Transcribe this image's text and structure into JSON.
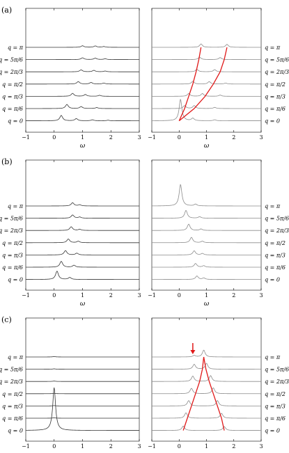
{
  "figure": {
    "panel_labels": [
      "(a)",
      "(b)",
      "(c)"
    ],
    "q_labels": [
      "q = π",
      "q = 5π/6",
      "q = 2π/3",
      "q = π/2",
      "q = π/3",
      "q = π/6",
      "q = 0"
    ],
    "x_tick_labels": [
      "−1",
      "0",
      "1",
      "2",
      "3"
    ],
    "xlabel": "ω",
    "colors": {
      "left_curves": "#333333",
      "right_curves": "#8a8a8a",
      "dispersion": "#e01818",
      "arrow": "#e01818",
      "axes": "#000000"
    }
  },
  "chart_data": [
    {
      "type": "line",
      "panel": "(a)",
      "side": "left",
      "xlabel": "ω",
      "xlim": [
        -1,
        3
      ],
      "series": [
        {
          "name": "q = 0",
          "peaks": [
            [
              0.25,
              0.55
            ],
            [
              0.78,
              0.22
            ],
            [
              1.35,
              0.1
            ],
            [
              1.9,
              0.06
            ]
          ]
        },
        {
          "name": "q = π/6",
          "peaks": [
            [
              0.45,
              0.42
            ],
            [
              0.95,
              0.2
            ],
            [
              1.5,
              0.1
            ]
          ]
        },
        {
          "name": "q = π/3",
          "peaks": [
            [
              0.65,
              0.3
            ],
            [
              1.1,
              0.18
            ],
            [
              1.6,
              0.1
            ]
          ]
        },
        {
          "name": "q = π/2",
          "peaks": [
            [
              0.85,
              0.25
            ],
            [
              1.3,
              0.16
            ],
            [
              1.75,
              0.1
            ]
          ]
        },
        {
          "name": "q = 2π/3",
          "peaks": [
            [
              0.95,
              0.2
            ],
            [
              1.4,
              0.15
            ],
            [
              1.8,
              0.08
            ]
          ]
        },
        {
          "name": "q = 5π/6",
          "peaks": [
            [
              1.0,
              0.18
            ],
            [
              1.45,
              0.14
            ],
            [
              1.8,
              0.08
            ]
          ]
        },
        {
          "name": "q = π",
          "peaks": [
            [
              1.0,
              0.16
            ],
            [
              1.45,
              0.14
            ],
            [
              1.75,
              0.08
            ]
          ]
        }
      ]
    },
    {
      "type": "line",
      "panel": "(a)",
      "side": "right",
      "xlabel": "ω",
      "xlim": [
        -1,
        3
      ],
      "series": [
        {
          "name": "q = 0",
          "peaks": [
            [
              0.05,
              2.2
            ],
            [
              0.5,
              0.25
            ],
            [
              1.3,
              0.1
            ]
          ]
        },
        {
          "name": "q = π/6",
          "peaks": [
            [
              0.2,
              0.3
            ],
            [
              0.55,
              0.3
            ],
            [
              1.3,
              0.12
            ]
          ]
        },
        {
          "name": "q = π/3",
          "peaks": [
            [
              0.35,
              0.28
            ],
            [
              0.85,
              0.28
            ],
            [
              1.5,
              0.12
            ]
          ]
        },
        {
          "name": "q = π/2",
          "peaks": [
            [
              0.5,
              0.28
            ],
            [
              1.1,
              0.25
            ],
            [
              1.7,
              0.1
            ]
          ]
        },
        {
          "name": "q = 2π/3",
          "peaks": [
            [
              0.65,
              0.25
            ],
            [
              1.3,
              0.22
            ]
          ]
        },
        {
          "name": "q = 5π/6",
          "peaks": [
            [
              0.75,
              0.24
            ],
            [
              1.5,
              0.2
            ]
          ]
        },
        {
          "name": "q = π",
          "peaks": [
            [
              0.8,
              0.35
            ],
            [
              1.75,
              0.3
            ]
          ]
        }
      ],
      "dispersion_curves": [
        {
          "x": [
            0.0,
            0.2,
            0.35,
            0.5,
            0.62,
            0.72,
            0.8
          ],
          "y": [
            0,
            1,
            2,
            3,
            4,
            5,
            6
          ]
        },
        {
          "x": [
            0.0,
            0.55,
            0.95,
            1.25,
            1.5,
            1.65,
            1.75
          ],
          "y": [
            0,
            1,
            2,
            3,
            4,
            5,
            6
          ]
        }
      ]
    },
    {
      "type": "line",
      "panel": "(b)",
      "side": "left",
      "xlabel": "ω",
      "xlim": [
        -1,
        3
      ],
      "series": [
        {
          "name": "q = 0",
          "peaks": [
            [
              0.1,
              0.85
            ],
            [
              0.55,
              0.2
            ]
          ]
        },
        {
          "name": "q = π/6",
          "peaks": [
            [
              0.25,
              0.6
            ],
            [
              0.7,
              0.2
            ]
          ]
        },
        {
          "name": "q = π/3",
          "peaks": [
            [
              0.4,
              0.45
            ],
            [
              0.8,
              0.18
            ]
          ]
        },
        {
          "name": "q = π/2",
          "peaks": [
            [
              0.5,
              0.38
            ],
            [
              0.85,
              0.15
            ]
          ]
        },
        {
          "name": "q = 2π/3",
          "peaks": [
            [
              0.6,
              0.38
            ],
            [
              0.9,
              0.12
            ]
          ]
        },
        {
          "name": "q = 5π/6",
          "peaks": [
            [
              0.65,
              0.33
            ],
            [
              0.9,
              0.12
            ]
          ]
        },
        {
          "name": "q = π",
          "peaks": [
            [
              0.65,
              0.33
            ],
            [
              0.9,
              0.12
            ]
          ]
        }
      ]
    },
    {
      "type": "line",
      "panel": "(b)",
      "side": "right",
      "xlabel": "ω",
      "xlim": [
        -1,
        3
      ],
      "series": [
        {
          "name": "q = 0",
          "peaks": [
            [
              0.65,
              0.35
            ],
            [
              0.9,
              0.15
            ]
          ]
        },
        {
          "name": "q = π/6",
          "peaks": [
            [
              0.6,
              0.38
            ],
            [
              0.9,
              0.15
            ]
          ]
        },
        {
          "name": "q = π/3",
          "peaks": [
            [
              0.55,
              0.42
            ],
            [
              0.85,
              0.15
            ]
          ]
        },
        {
          "name": "q = π/2",
          "peaks": [
            [
              0.45,
              0.55
            ],
            [
              0.85,
              0.15
            ]
          ]
        },
        {
          "name": "q = 2π/3",
          "peaks": [
            [
              0.35,
              0.65
            ],
            [
              0.8,
              0.15
            ]
          ]
        },
        {
          "name": "q = 5π/6",
          "peaks": [
            [
              0.25,
              0.8
            ],
            [
              0.75,
              0.15
            ]
          ]
        },
        {
          "name": "q = π",
          "peaks": [
            [
              0.05,
              2.2
            ],
            [
              0.6,
              0.18
            ]
          ]
        }
      ]
    },
    {
      "type": "line",
      "panel": "(c)",
      "side": "left",
      "xlabel": "ω",
      "xlim": [
        -1,
        3
      ],
      "series": [
        {
          "name": "q = 0",
          "peaks": [
            [
              0.0,
              4.4
            ]
          ]
        },
        {
          "name": "q = π/6",
          "peaks": [
            [
              0.0,
              0.04
            ]
          ]
        },
        {
          "name": "q = π/3",
          "peaks": [
            [
              0.0,
              0.04
            ]
          ]
        },
        {
          "name": "q = π/2",
          "peaks": [
            [
              0.0,
              0.04
            ]
          ]
        },
        {
          "name": "q = 2π/3",
          "peaks": [
            [
              0.0,
              0.04
            ]
          ]
        },
        {
          "name": "q = 5π/6",
          "peaks": [
            [
              0.0,
              0.04
            ]
          ]
        },
        {
          "name": "q = π",
          "peaks": [
            [
              0.0,
              0.04
            ]
          ]
        }
      ]
    },
    {
      "type": "line",
      "panel": "(c)",
      "side": "right",
      "xlabel": "ω",
      "xlim": [
        -1,
        3
      ],
      "series": [
        {
          "name": "q = 0",
          "peaks": [
            [
              0.15,
              0.45
            ],
            [
              1.65,
              0.4
            ]
          ]
        },
        {
          "name": "q = π/6",
          "peaks": [
            [
              0.25,
              0.55
            ],
            [
              1.55,
              0.5
            ]
          ]
        },
        {
          "name": "q = π/3",
          "peaks": [
            [
              0.35,
              0.55
            ],
            [
              1.4,
              0.55
            ]
          ]
        },
        {
          "name": "q = π/2",
          "peaks": [
            [
              0.45,
              0.55
            ],
            [
              1.25,
              0.6
            ]
          ]
        },
        {
          "name": "q = 2π/3",
          "peaks": [
            [
              0.5,
              0.55
            ],
            [
              1.15,
              0.6
            ]
          ]
        },
        {
          "name": "q = 5π/6",
          "peaks": [
            [
              0.55,
              0.5
            ],
            [
              1.0,
              0.6
            ]
          ]
        },
        {
          "name": "q = π",
          "peaks": [
            [
              0.55,
              0.15
            ],
            [
              0.9,
              0.7
            ]
          ]
        }
      ],
      "dispersion_curves": [
        {
          "x": [
            0.15,
            0.3,
            0.45,
            0.6,
            0.75,
            0.85,
            0.9
          ],
          "y": [
            0,
            1,
            2,
            3,
            4,
            5,
            6
          ]
        },
        {
          "x": [
            1.65,
            1.55,
            1.4,
            1.25,
            1.1,
            0.98,
            0.9
          ],
          "y": [
            0,
            1,
            2,
            3,
            4,
            5,
            6
          ]
        }
      ],
      "annotation": {
        "type": "arrow",
        "x": 0.5,
        "row": "q = π"
      }
    }
  ]
}
